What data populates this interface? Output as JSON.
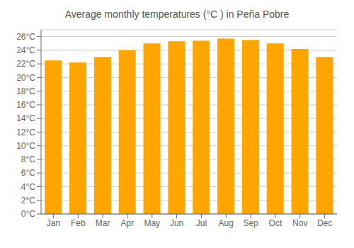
{
  "chart_data": {
    "type": "bar",
    "title": "Average monthly temperatures (°C ) in Peña Pobre",
    "categories": [
      "Jan",
      "Feb",
      "Mar",
      "Apr",
      "May",
      "Jun",
      "Jul",
      "Aug",
      "Sep",
      "Oct",
      "Nov",
      "Dec"
    ],
    "values": [
      22.5,
      22.2,
      23.0,
      24.0,
      25.0,
      25.3,
      25.4,
      25.7,
      25.5,
      25.0,
      24.2,
      23.0
    ],
    "color": "#FFA500",
    "ylim": [
      0,
      27
    ],
    "yticks": [
      {
        "value": 0,
        "label": "0°C"
      },
      {
        "value": 2,
        "label": "2°C"
      },
      {
        "value": 4,
        "label": "4°C"
      },
      {
        "value": 6,
        "label": "6°C"
      },
      {
        "value": 8,
        "label": "8°C"
      },
      {
        "value": 10,
        "label": "10°C"
      },
      {
        "value": 12,
        "label": "12°C"
      },
      {
        "value": 14,
        "label": "14°C"
      },
      {
        "value": 16,
        "label": "16°C"
      },
      {
        "value": 18,
        "label": "18°C"
      },
      {
        "value": 20,
        "label": "20°C"
      },
      {
        "value": 22,
        "label": "22°C"
      },
      {
        "value": 24,
        "label": "24°C"
      },
      {
        "value": 26,
        "label": "26°C"
      }
    ],
    "grid": true
  }
}
